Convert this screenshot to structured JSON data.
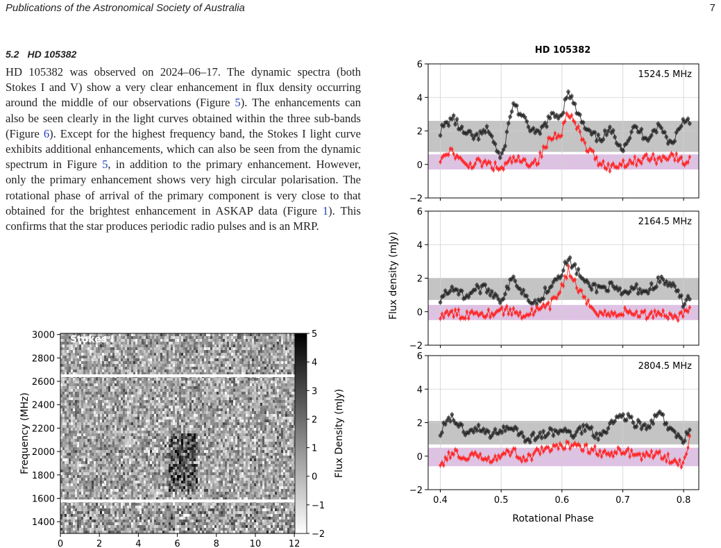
{
  "header": {
    "journal": "Publications of the Astronomical Society of Australia",
    "page_number": "7"
  },
  "section": {
    "number": "5.2",
    "title": "HD 105382"
  },
  "paragraph": {
    "p1": "HD 105382 was observed on 2024–06–17. The dynamic spectra (both Stokes I and V) show a very clear enhancement in flux density occurring around the middle of our observations (Figure ",
    "ref1": "5",
    "p2": "). The enhancements can also be seen clearly in the light curves obtained within the three sub-bands (Figure ",
    "ref2": "6",
    "p3": "). Except for the highest frequency band, the Stokes I light curve exhibits additional enhancements, which can also be seen from the dynamic spectrum in Figure ",
    "ref3": "5",
    "p4": ", in addition to the primary enhancement. However, only the primary enhancement shows very high circular polarisation. The rotational phase of arrival of the primary component is very close to that obtained for the brightest enhancement in ASKAP data (Figure ",
    "ref4": "1",
    "p5": "). This confirms that the star produces periodic radio pulses and is an MRP."
  },
  "chart_data": [
    {
      "type": "heatmap",
      "label": "Stokes I",
      "ylabel": "Frequency (MHz)",
      "xlabel": "",
      "xlim": [
        0,
        12.6
      ],
      "ylim": [
        1300,
        3010
      ],
      "xticks": [
        "0",
        "2",
        "4",
        "6",
        "8",
        "10",
        "12"
      ],
      "yticks": [
        "1400",
        "1600",
        "1800",
        "2000",
        "2200",
        "2400",
        "2600",
        "2800",
        "3000"
      ],
      "colorbar": {
        "label": "Flux Density (mJy)",
        "range": [
          -2,
          5
        ],
        "ticks": [
          "5",
          "4",
          "3",
          "2",
          "1",
          "0",
          "−1",
          "−2"
        ]
      },
      "flagged_bands_mhz": [
        [
          2640,
          2660
        ],
        [
          1565,
          1590
        ]
      ],
      "bright_region": {
        "time_range": [
          5.5,
          7.0
        ],
        "freq_range": [
          1650,
          2150
        ],
        "flux": 4
      }
    },
    {
      "type": "scatter",
      "title": "HD 105382",
      "xlabel": "Rotational Phase",
      "ylabel": "Flux density (mJy)",
      "xlim": [
        0.38,
        0.825
      ],
      "xticks": [
        "0.4",
        "0.5",
        "0.6",
        "0.7",
        "0.8"
      ],
      "ylim": [
        -2,
        6
      ],
      "yticks": [
        "6",
        "4",
        "2",
        "0",
        "−2"
      ],
      "colors": {
        "stokes_i": "#222222",
        "stokes_v": "#ff2020",
        "i_band": "#b0b0b0",
        "v_band": "#c89ad0"
      },
      "panels": [
        {
          "label": "1524.5 MHz",
          "stokes_i_band": [
            0.75,
            2.6
          ],
          "stokes_v_band": [
            -0.3,
            0.6
          ],
          "stokes_i": [
            [
              0.4,
              2.0
            ],
            [
              0.42,
              2.8
            ],
            [
              0.44,
              1.8
            ],
            [
              0.46,
              1.6
            ],
            [
              0.48,
              2.1
            ],
            [
              0.5,
              0.2
            ],
            [
              0.52,
              3.7
            ],
            [
              0.54,
              2.5
            ],
            [
              0.56,
              1.7
            ],
            [
              0.58,
              2.8
            ],
            [
              0.6,
              3.0
            ],
            [
              0.61,
              4.5
            ],
            [
              0.62,
              3.5
            ],
            [
              0.64,
              2.0
            ],
            [
              0.66,
              1.5
            ],
            [
              0.68,
              2.0
            ],
            [
              0.7,
              1.0
            ],
            [
              0.72,
              2.2
            ],
            [
              0.74,
              1.6
            ],
            [
              0.76,
              2.3
            ],
            [
              0.78,
              1.2
            ],
            [
              0.8,
              2.7
            ],
            [
              0.81,
              2.7
            ]
          ],
          "stokes_v": [
            [
              0.4,
              0.2
            ],
            [
              0.42,
              0.8
            ],
            [
              0.44,
              -0.1
            ],
            [
              0.46,
              0.1
            ],
            [
              0.48,
              0.0
            ],
            [
              0.5,
              -0.3
            ],
            [
              0.52,
              0.3
            ],
            [
              0.54,
              0.1
            ],
            [
              0.56,
              0.2
            ],
            [
              0.58,
              1.5
            ],
            [
              0.6,
              2.0
            ],
            [
              0.61,
              3.2
            ],
            [
              0.62,
              2.5
            ],
            [
              0.64,
              1.0
            ],
            [
              0.66,
              0.2
            ],
            [
              0.68,
              -0.2
            ],
            [
              0.7,
              0.1
            ],
            [
              0.72,
              0.2
            ],
            [
              0.74,
              0.4
            ],
            [
              0.76,
              0.3
            ],
            [
              0.78,
              0.6
            ],
            [
              0.8,
              0.1
            ],
            [
              0.81,
              0.2
            ]
          ]
        },
        {
          "label": "2164.5 MHz",
          "stokes_i_band": [
            0.7,
            2.0
          ],
          "stokes_v_band": [
            -0.5,
            0.4
          ],
          "stokes_i": [
            [
              0.4,
              0.8
            ],
            [
              0.42,
              1.5
            ],
            [
              0.44,
              0.9
            ],
            [
              0.46,
              1.4
            ],
            [
              0.48,
              1.3
            ],
            [
              0.5,
              0.7
            ],
            [
              0.52,
              2.0
            ],
            [
              0.54,
              1.0
            ],
            [
              0.56,
              0.5
            ],
            [
              0.58,
              1.6
            ],
            [
              0.6,
              2.4
            ],
            [
              0.61,
              3.1
            ],
            [
              0.62,
              2.7
            ],
            [
              0.64,
              1.6
            ],
            [
              0.66,
              1.4
            ],
            [
              0.68,
              1.5
            ],
            [
              0.7,
              1.0
            ],
            [
              0.72,
              1.4
            ],
            [
              0.74,
              1.2
            ],
            [
              0.76,
              1.9
            ],
            [
              0.78,
              1.6
            ],
            [
              0.8,
              0.5
            ],
            [
              0.81,
              0.9
            ]
          ],
          "stokes_v": [
            [
              0.4,
              -0.3
            ],
            [
              0.42,
              -0.1
            ],
            [
              0.44,
              -0.2
            ],
            [
              0.46,
              0.0
            ],
            [
              0.48,
              -0.1
            ],
            [
              0.5,
              0.1
            ],
            [
              0.52,
              0.0
            ],
            [
              0.54,
              -0.2
            ],
            [
              0.56,
              0.1
            ],
            [
              0.58,
              0.3
            ],
            [
              0.6,
              1.5
            ],
            [
              0.61,
              2.5
            ],
            [
              0.62,
              1.8
            ],
            [
              0.64,
              0.5
            ],
            [
              0.66,
              0.0
            ],
            [
              0.68,
              -0.2
            ],
            [
              0.7,
              0.0
            ],
            [
              0.72,
              -0.1
            ],
            [
              0.74,
              -0.2
            ],
            [
              0.76,
              0.0
            ],
            [
              0.78,
              -0.3
            ],
            [
              0.8,
              -0.2
            ],
            [
              0.81,
              0.2
            ]
          ]
        },
        {
          "label": "2804.5 MHz",
          "stokes_i_band": [
            0.7,
            2.1
          ],
          "stokes_v_band": [
            -0.6,
            0.5
          ],
          "stokes_i": [
            [
              0.4,
              1.5
            ],
            [
              0.42,
              2.3
            ],
            [
              0.44,
              1.5
            ],
            [
              0.46,
              1.7
            ],
            [
              0.48,
              1.3
            ],
            [
              0.5,
              1.6
            ],
            [
              0.52,
              1.8
            ],
            [
              0.54,
              1.0
            ],
            [
              0.56,
              1.2
            ],
            [
              0.58,
              1.4
            ],
            [
              0.6,
              1.5
            ],
            [
              0.62,
              1.3
            ],
            [
              0.64,
              1.8
            ],
            [
              0.66,
              1.2
            ],
            [
              0.68,
              1.9
            ],
            [
              0.7,
              2.5
            ],
            [
              0.72,
              2.0
            ],
            [
              0.74,
              1.6
            ],
            [
              0.76,
              2.6
            ],
            [
              0.78,
              1.4
            ],
            [
              0.8,
              1.0
            ],
            [
              0.81,
              1.7
            ]
          ],
          "stokes_v": [
            [
              0.4,
              -0.6
            ],
            [
              0.42,
              0.3
            ],
            [
              0.44,
              -0.3
            ],
            [
              0.46,
              0.1
            ],
            [
              0.48,
              -0.1
            ],
            [
              0.5,
              0.0
            ],
            [
              0.52,
              0.3
            ],
            [
              0.54,
              -0.2
            ],
            [
              0.56,
              0.2
            ],
            [
              0.58,
              0.4
            ],
            [
              0.6,
              0.5
            ],
            [
              0.62,
              0.8
            ],
            [
              0.64,
              0.5
            ],
            [
              0.66,
              0.3
            ],
            [
              0.68,
              0.0
            ],
            [
              0.7,
              0.4
            ],
            [
              0.72,
              0.1
            ],
            [
              0.74,
              0.0
            ],
            [
              0.76,
              0.2
            ],
            [
              0.78,
              -0.2
            ],
            [
              0.8,
              -0.5
            ],
            [
              0.81,
              1.0
            ]
          ]
        }
      ]
    }
  ]
}
